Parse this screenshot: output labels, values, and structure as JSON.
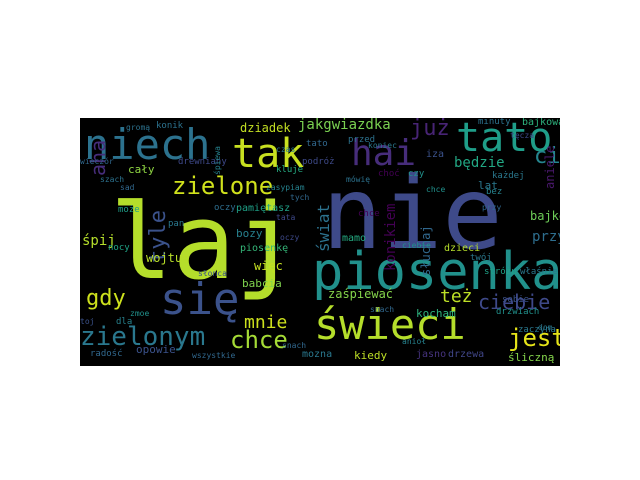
{
  "palette": {
    "background": "#000000",
    "yellow_green": "#b5de2b",
    "light_green": "#6ece58",
    "teal": "#21918c",
    "blue": "#31688e",
    "indigo": "#443983",
    "purple": "#440154",
    "cyan": "#1fa187"
  },
  "words": [
    {
      "text": "laj",
      "color": "#b5de2b"
    },
    {
      "text": "nie",
      "color": "#3e4a89"
    },
    {
      "text": "piosenka",
      "color": "#21918c"
    },
    {
      "text": "świeci",
      "color": "#b5de2b"
    },
    {
      "text": "niech",
      "color": "#2c728e"
    },
    {
      "text": "tak",
      "color": "#c8e020"
    },
    {
      "text": "hai",
      "color": "#472d7b"
    },
    {
      "text": "tato",
      "color": "#1f9e89"
    },
    {
      "text": "się",
      "color": "#3b528b"
    },
    {
      "text": "zielone",
      "color": "#d0e11c"
    },
    {
      "text": "zielonym",
      "color": "#2a788e"
    },
    {
      "text": "chce",
      "color": "#a5db36"
    },
    {
      "text": "mnie",
      "color": "#cde11d"
    },
    {
      "text": "jest",
      "color": "#e5e419"
    },
    {
      "text": "ciebie",
      "color": "#3e4989"
    },
    {
      "text": "gdy",
      "color": "#cde11d"
    },
    {
      "text": "tyle",
      "color": "#3b528b"
    },
    {
      "text": "aha",
      "color": "#472d7b"
    },
    {
      "text": "już",
      "color": "#482475"
    },
    {
      "text": "cię",
      "color": "#25858e"
    },
    {
      "text": "jakgwiazdka",
      "color": "#7ad151"
    },
    {
      "text": "dziadek",
      "color": "#c2df23"
    },
    {
      "text": "świat",
      "color": "#2c728e"
    },
    {
      "text": "będzie",
      "color": "#22a884"
    },
    {
      "text": "też",
      "color": "#bddf26"
    },
    {
      "text": "przy",
      "color": "#2e6e8e"
    },
    {
      "text": "bajkę",
      "color": "#6ece58"
    },
    {
      "text": "śpij",
      "color": "#b5de2b"
    },
    {
      "text": "konikiem",
      "color": "#440154"
    },
    {
      "text": "wojtuś",
      "color": "#b8de29"
    },
    {
      "text": "więc",
      "color": "#c5e021"
    },
    {
      "text": "babcia",
      "color": "#7fd34e"
    },
    {
      "text": "zaśpiewać",
      "color": "#84d44b"
    },
    {
      "text": "kocham",
      "color": "#2db27d"
    },
    {
      "text": "słuchaj",
      "color": "#31688e"
    },
    {
      "text": "lat",
      "color": "#2a788e"
    },
    {
      "text": "cały",
      "color": "#90d743"
    },
    {
      "text": "pamiętasz",
      "color": "#1fa187"
    },
    {
      "text": "oczy",
      "color": "#2e6e8e"
    },
    {
      "text": "bozy",
      "color": "#27808e"
    },
    {
      "text": "piosenkę",
      "color": "#35b779"
    },
    {
      "text": "mamo",
      "color": "#25ac82"
    },
    {
      "text": "opowie",
      "color": "#3b528b"
    },
    {
      "text": "mozna",
      "color": "#2a788e"
    },
    {
      "text": "kiedy",
      "color": "#bddf26"
    },
    {
      "text": "śliczną",
      "color": "#84d44b"
    },
    {
      "text": "drzewa",
      "color": "#404688"
    },
    {
      "text": "jasno",
      "color": "#46337f"
    },
    {
      "text": "dzieci",
      "color": "#b5de2b"
    },
    {
      "text": "twój",
      "color": "#2a788e"
    },
    {
      "text": "aniele",
      "color": "#48186a"
    },
    {
      "text": "każdej",
      "color": "#2a788e"
    },
    {
      "text": "bajkowa",
      "color": "#2db27d"
    },
    {
      "text": "minuty",
      "color": "#2c728e"
    },
    {
      "text": "zaczyna",
      "color": "#2a788e"
    },
    {
      "text": "choć",
      "color": "#440154"
    },
    {
      "text": "czy",
      "color": "#21918c"
    },
    {
      "text": "iza",
      "color": "#3b528b"
    },
    {
      "text": "podróż",
      "color": "#3e4a89"
    },
    {
      "text": "przed",
      "color": "#2c728e"
    },
    {
      "text": "tato",
      "color": "#31688e"
    },
    {
      "text": "kluje",
      "color": "#25ac82"
    },
    {
      "text": "chce",
      "color": "#440154"
    },
    {
      "text": "bez",
      "color": "#26828e"
    },
    {
      "text": "sobie",
      "color": "#3b528b"
    },
    {
      "text": "drzwiach",
      "color": "#21918c"
    },
    {
      "text": "snach",
      "color": "#31688e"
    },
    {
      "text": "radość",
      "color": "#31688e"
    },
    {
      "text": "nocy",
      "color": "#20a386"
    },
    {
      "text": "dla",
      "color": "#26828e"
    },
    {
      "text": "może",
      "color": "#1f9e89"
    },
    {
      "text": "drewniany",
      "color": "#3e4989"
    },
    {
      "text": "wieczór",
      "color": "#31688e"
    },
    {
      "text": "konik",
      "color": "#2c728e"
    },
    {
      "text": "wszystkie",
      "color": "#31688e"
    },
    {
      "text": "stróżu",
      "color": "#1fa187"
    },
    {
      "text": "właśnie",
      "color": "#2a788e"
    },
    {
      "text": "zmoe",
      "color": "#21918c"
    },
    {
      "text": "toj",
      "color": "#3b528b"
    },
    {
      "text": "pan",
      "color": "#2a788e"
    },
    {
      "text": "gromą",
      "color": "#2c728e"
    },
    {
      "text": "oczy",
      "color": "#3e4989"
    },
    {
      "text": "mówię",
      "color": "#2c728e"
    },
    {
      "text": "snach",
      "color": "#31688e"
    },
    {
      "text": "śpiewa",
      "color": "#26828e"
    },
    {
      "text": "dom",
      "color": "#2a788e"
    },
    {
      "text": "tych",
      "color": "#31688e"
    },
    {
      "text": "tata",
      "color": "#3e4989"
    },
    {
      "text": "chce",
      "color": "#21918c"
    },
    {
      "text": "anioł",
      "color": "#26828e"
    },
    {
      "text": "czas",
      "color": "#2a788e"
    },
    {
      "text": "przy",
      "color": "#31688e"
    },
    {
      "text": "słonca",
      "color": "#3b528b"
    },
    {
      "text": "szach",
      "color": "#2c728e"
    },
    {
      "text": "zasypiam",
      "color": "#26828e"
    },
    {
      "text": "tęcza",
      "color": "#3e4989"
    },
    {
      "text": "sad",
      "color": "#31688e"
    },
    {
      "text": "koniec",
      "color": "#2a788e"
    },
    {
      "text": "ciebie",
      "color": "#21918c"
    }
  ]
}
